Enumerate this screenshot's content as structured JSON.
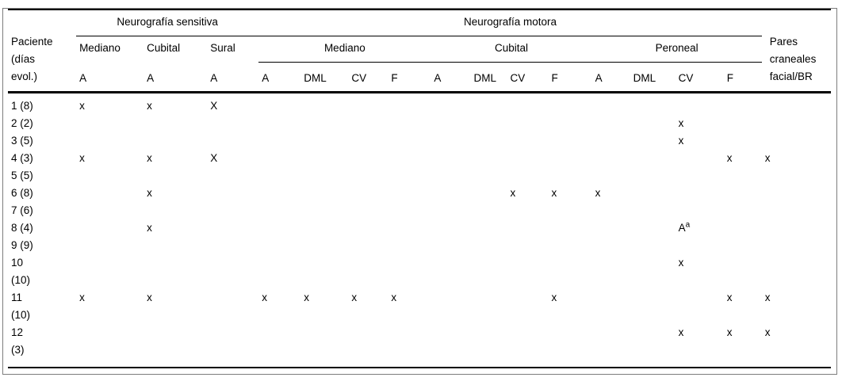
{
  "table": {
    "header": {
      "patient": "Paciente\n(días\nevol.)",
      "sensory_group": "Neurografía sensitiva",
      "motor_group": "Neurografía motora",
      "cranial": "Pares\ncraneales\nfacial/BR",
      "sensory_nerves": [
        "Mediano",
        "Cubital",
        "Sural"
      ],
      "motor_nerves": [
        "Mediano",
        "Cubital",
        "Peroneal"
      ],
      "measures": [
        "A",
        "A",
        "A",
        "A",
        "DML",
        "CV",
        "F",
        "A",
        "DML",
        "CV",
        "F",
        "A",
        "DML",
        "CV",
        "F"
      ]
    },
    "rows": [
      {
        "patient": "1 (8)",
        "marks": [
          "x",
          "x",
          "X",
          "",
          "",
          "",
          "",
          "",
          "",
          "",
          "",
          "",
          "",
          "",
          "",
          ""
        ]
      },
      {
        "patient": "2 (2)",
        "marks": [
          "",
          "",
          "",
          "",
          "",
          "",
          "",
          "",
          "",
          "",
          "",
          "",
          "",
          "x",
          "",
          ""
        ]
      },
      {
        "patient": "3 (5)",
        "marks": [
          "",
          "",
          "",
          "",
          "",
          "",
          "",
          "",
          "",
          "",
          "",
          "",
          "",
          "x",
          "",
          ""
        ]
      },
      {
        "patient": "4 (3)",
        "marks": [
          "x",
          "x",
          "X",
          "",
          "",
          "",
          "",
          "",
          "",
          "",
          "",
          "",
          "",
          "",
          "x",
          "x"
        ]
      },
      {
        "patient": "5 (5)",
        "marks": [
          "",
          "",
          "",
          "",
          "",
          "",
          "",
          "",
          "",
          "",
          "",
          "",
          "",
          "",
          "",
          ""
        ]
      },
      {
        "patient": "6 (8)",
        "marks": [
          "",
          "x",
          "",
          "",
          "",
          "",
          "",
          "",
          "",
          "x",
          "x",
          "x",
          "",
          "",
          "",
          ""
        ]
      },
      {
        "patient": "7 (6)",
        "marks": [
          "",
          "",
          "",
          "",
          "",
          "",
          "",
          "",
          "",
          "",
          "",
          "",
          "",
          "",
          "",
          ""
        ]
      },
      {
        "patient": "8 (4)",
        "marks": [
          "",
          "x",
          "",
          "",
          "",
          "",
          "",
          "",
          "",
          "",
          "",
          "",
          "",
          "A^a",
          "",
          ""
        ]
      },
      {
        "patient": "9 (9)",
        "marks": [
          "",
          "",
          "",
          "",
          "",
          "",
          "",
          "",
          "",
          "",
          "",
          "",
          "",
          "",
          "",
          ""
        ]
      },
      {
        "patient": "10\n(10)",
        "marks": [
          "",
          "",
          "",
          "",
          "",
          "",
          "",
          "",
          "",
          "",
          "",
          "",
          "",
          "x",
          "",
          ""
        ]
      },
      {
        "patient": "11\n(10)",
        "marks": [
          "x",
          "x",
          "",
          "x",
          "x",
          "x",
          "x",
          "",
          "",
          "",
          "x",
          "",
          "",
          "",
          "x",
          "x"
        ]
      },
      {
        "patient": "12\n(3)",
        "marks": [
          "",
          "",
          "",
          "",
          "",
          "",
          "",
          "",
          "",
          "",
          "",
          "",
          "",
          "x",
          "x",
          "x"
        ]
      }
    ]
  }
}
